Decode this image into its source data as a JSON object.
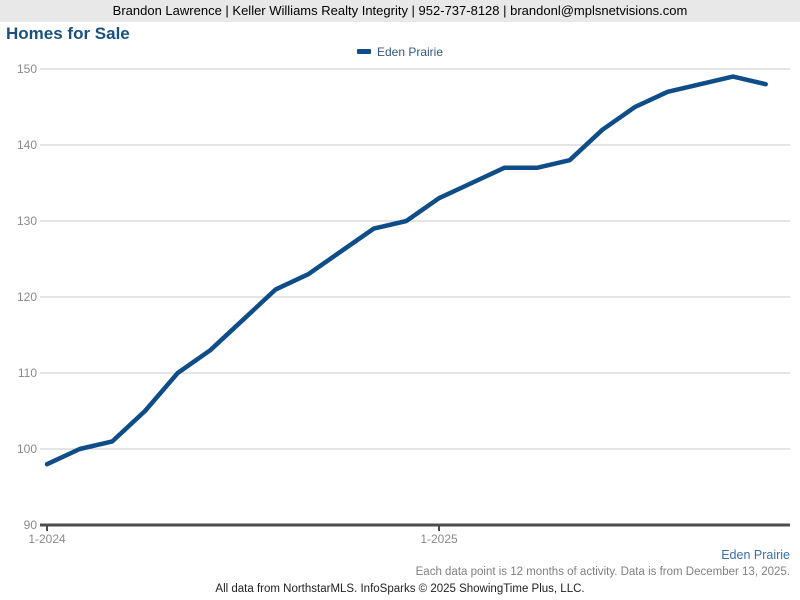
{
  "header": {
    "contact_line": "Brandon Lawrence | Keller Williams Realty Integrity | 952-737-8128 | brandonl@mplsnetvisions.com"
  },
  "title": "Homes for Sale",
  "legend": {
    "series_label": "Eden Prairie"
  },
  "chart_data": {
    "type": "line",
    "title": "Homes for Sale",
    "categories": [
      "1-2024",
      "2-2024",
      "3-2024",
      "4-2024",
      "5-2024",
      "6-2024",
      "7-2024",
      "8-2024",
      "9-2024",
      "10-2024",
      "11-2024",
      "12-2024",
      "1-2025",
      "2-2025",
      "3-2025",
      "4-2025",
      "5-2025",
      "6-2025",
      "7-2025",
      "8-2025",
      "9-2025",
      "10-2025",
      "11-2025"
    ],
    "series": [
      {
        "name": "Eden Prairie",
        "color": "#0e4d88",
        "values": [
          98,
          100,
          101,
          105,
          110,
          113,
          117,
          121,
          123,
          126,
          129,
          130,
          133,
          135,
          137,
          137,
          138,
          142,
          145,
          147,
          148,
          149,
          148
        ]
      }
    ],
    "ylim": [
      90,
      150
    ],
    "yticks": [
      90,
      100,
      110,
      120,
      130,
      140,
      150
    ],
    "xticks": [
      {
        "index": 0,
        "label": "1-2024"
      },
      {
        "index": 12,
        "label": "1-2025"
      }
    ],
    "grid": "horizontal",
    "legend_position": "top-center",
    "xlabel": "",
    "ylabel": ""
  },
  "footer": {
    "series_label": "Eden Prairie",
    "disclaimer": "Each data point is 12 months of activity. Data is from December 13, 2025.",
    "credit": "All data from NorthstarMLS. InfoSparks © 2025 ShowingTime Plus, LLC."
  },
  "colors": {
    "line_blue": "#0e4d88",
    "title_blue": "#1b527b",
    "legend_text_blue": "#33587d",
    "footer_link_blue": "#3a6fa5",
    "header_bg": "#e8e8e8",
    "gridline": "#c9c9c9",
    "axis": "#4d4d4d",
    "tick_label_gray": "#8a8a8a"
  }
}
